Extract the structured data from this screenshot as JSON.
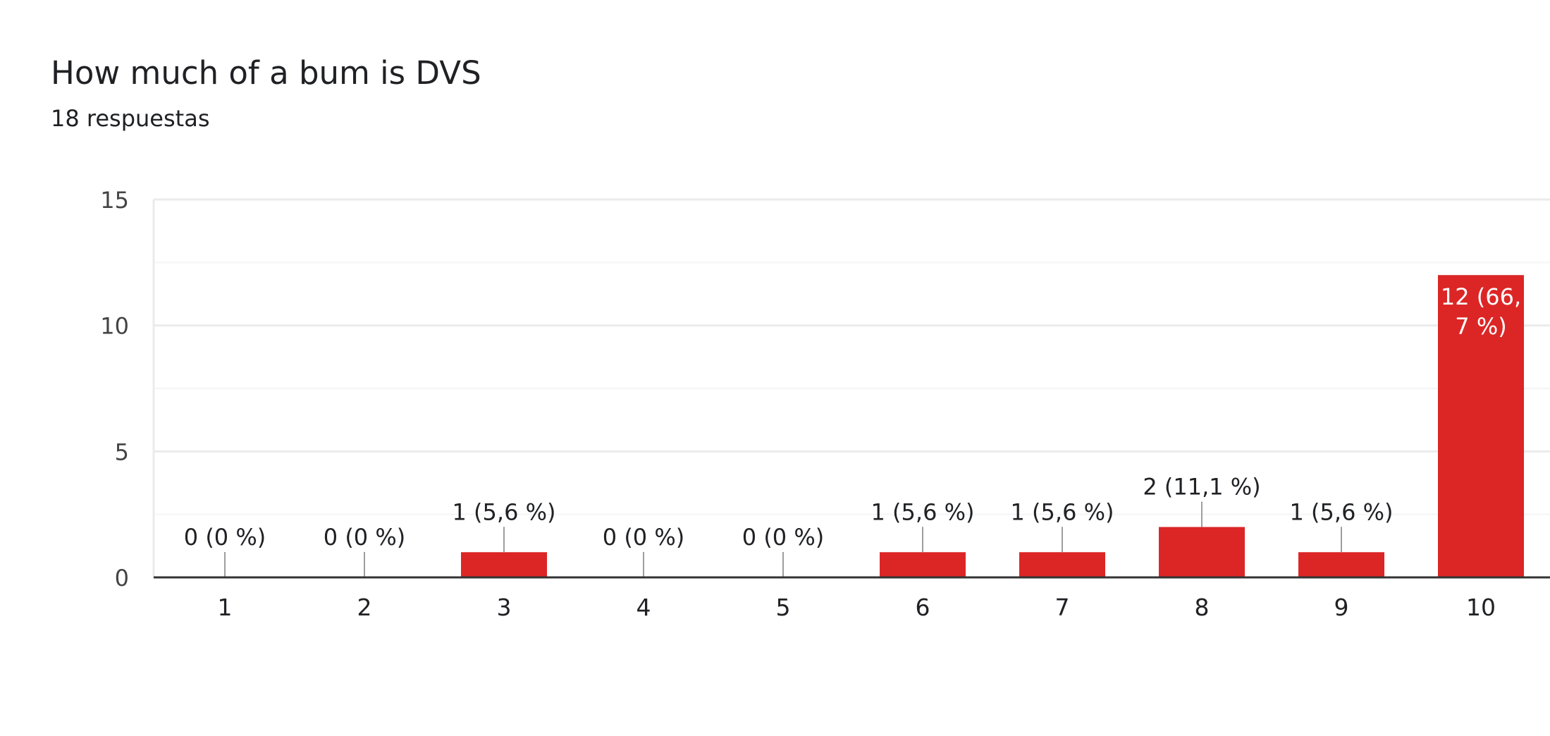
{
  "question": {
    "title": "How much of a bum is DVS",
    "responses": "18 respuestas"
  },
  "colors": {
    "bar": "#dc2626",
    "text": "#202124",
    "axis_text": "#444444",
    "grid": "#ebebeb",
    "minor_grid": "#f5f5f5",
    "baseline": "#333333",
    "leader": "#9e9e9e",
    "inside_label": "#ffffff"
  },
  "chart_data": {
    "type": "bar",
    "categories": [
      "1",
      "2",
      "3",
      "4",
      "5",
      "6",
      "7",
      "8",
      "9",
      "10"
    ],
    "values": [
      0,
      0,
      1,
      0,
      0,
      1,
      1,
      2,
      1,
      12
    ],
    "data_labels": [
      "0 (0 %)",
      "0 (0 %)",
      "1 (5,6 %)",
      "0 (0 %)",
      "0 (0 %)",
      "1 (5,6 %)",
      "1 (5,6 %)",
      "2 (11,1 %)",
      "1 (5,6 %)",
      "12 (66,7 %)"
    ],
    "inside_label_lines": [
      "12 (66,",
      "7 %)"
    ],
    "yticks": [
      "0",
      "5",
      "10",
      "15"
    ],
    "ytick_values": [
      0,
      5,
      10,
      15
    ],
    "ylim": [
      0,
      15
    ],
    "grid": true,
    "legend": false,
    "title": "",
    "xlabel": "",
    "ylabel": ""
  }
}
